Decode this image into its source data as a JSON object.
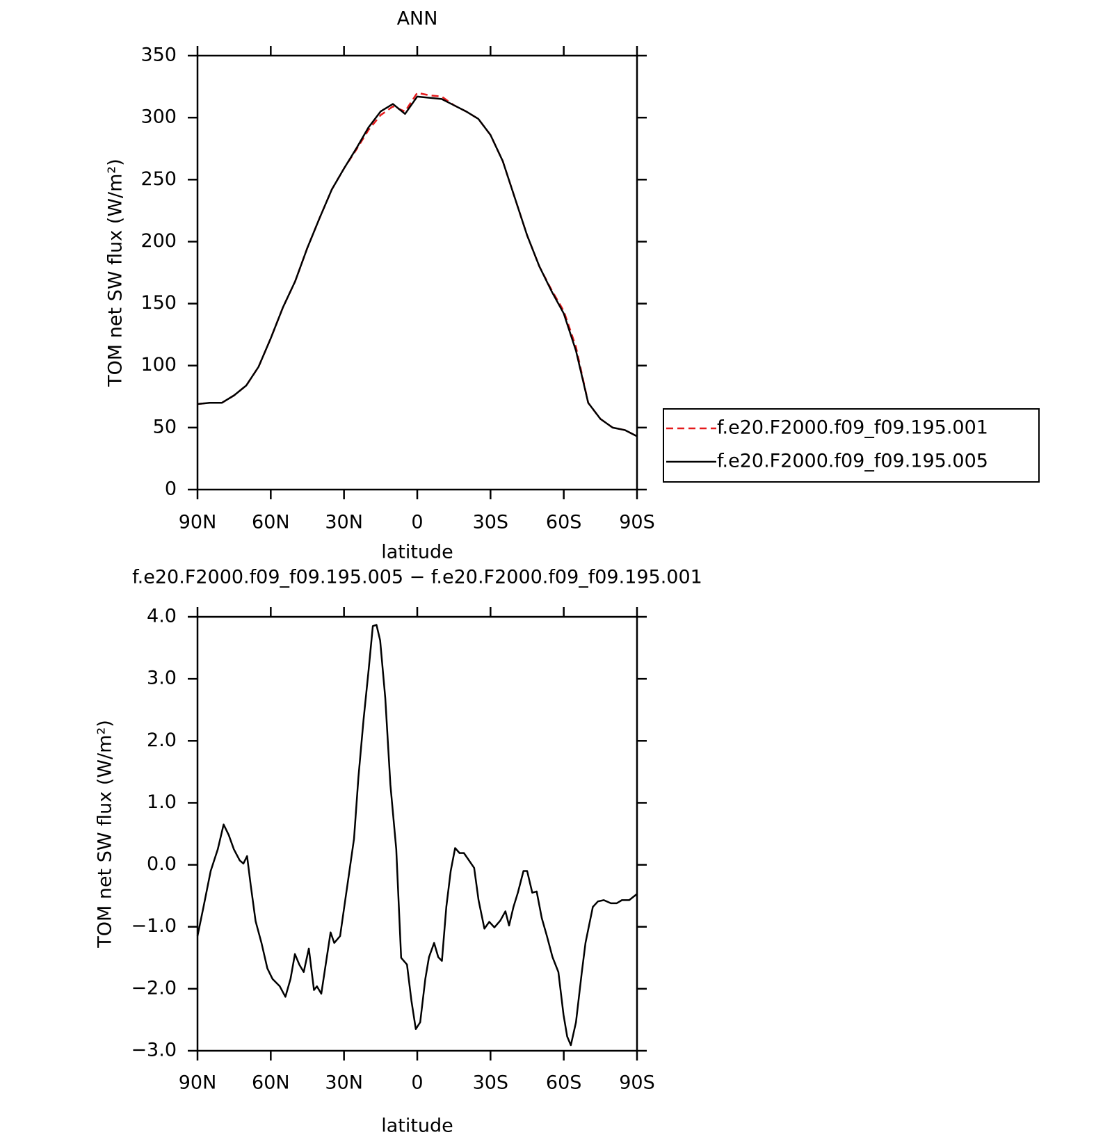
{
  "chart_data": [
    {
      "type": "line",
      "title": "ANN",
      "xlabel": "latitude",
      "ylabel": "TOM net SW flux (W/m²)",
      "x": [
        90,
        85,
        80,
        75,
        70,
        65,
        60,
        55,
        50,
        45,
        40,
        35,
        30,
        25,
        20,
        15,
        10,
        5,
        0,
        -5,
        -10,
        -15,
        -20,
        -25,
        -30,
        -35,
        -40,
        -45,
        -50,
        -55,
        -60,
        -65,
        -70,
        -75,
        -80,
        -85,
        -90
      ],
      "series": [
        {
          "name": "f.e20.F2000.f09_f09.195.001",
          "color": "#e41a1c",
          "linestyle": "dashed",
          "values": [
            69,
            70,
            70,
            76,
            84,
            99,
            122,
            147,
            168,
            195,
            219,
            242,
            259,
            274,
            290,
            302,
            309,
            305,
            320,
            318,
            317,
            310,
            305,
            299,
            286,
            265,
            235,
            205,
            180,
            161,
            144,
            115,
            70,
            57,
            50,
            48,
            43
          ]
        },
        {
          "name": "f.e20.F2000.f09_f09.195.005",
          "color": "#000000",
          "linestyle": "solid",
          "values": [
            69,
            70,
            70,
            76,
            84,
            99,
            122,
            147,
            168,
            195,
            219,
            242,
            259,
            275,
            292,
            305,
            311,
            303,
            317,
            316,
            315,
            310,
            305,
            299,
            286,
            265,
            235,
            205,
            180,
            160,
            142,
            112,
            70,
            57,
            50,
            48,
            43
          ]
        }
      ],
      "xlim": [
        90,
        -90
      ],
      "xticks": [
        {
          "value": 90,
          "label": "90N"
        },
        {
          "value": 60,
          "label": "60N"
        },
        {
          "value": 30,
          "label": "30N"
        },
        0,
        {
          "value": -30,
          "label": "30S"
        },
        {
          "value": -60,
          "label": "60S"
        },
        {
          "value": -90,
          "label": "90S"
        }
      ],
      "ylim": [
        0,
        350
      ],
      "yticks": [
        0,
        50,
        100,
        150,
        200,
        250,
        300,
        350
      ],
      "legend": "right"
    },
    {
      "type": "line",
      "title": "f.e20.F2000.f09_f09.195.005 − f.e20.F2000.f09_f09.195.001",
      "xlabel": "latitude",
      "ylabel": "TOM net SW flux (W/m²)",
      "x": [
        90,
        87.6,
        84.6,
        81.7,
        79.3,
        77.2,
        75.1,
        72.7,
        71.2,
        69.7,
        68.2,
        66.2,
        63.8,
        61.4,
        59.3,
        56.3,
        54,
        51.9,
        50.1,
        48.3,
        46.5,
        44.4,
        42.3,
        41.1,
        39.3,
        37.5,
        35.5,
        34,
        31.6,
        29.5,
        28,
        25.9,
        24.1,
        22,
        19.9,
        18.2,
        16.7,
        15.2,
        13.1,
        11,
        8.6,
        6.6,
        4.2,
        2.4,
        0.6,
        -1.2,
        -3.3,
        -4.8,
        -6.9,
        -8.6,
        -10.1,
        -11.9,
        -13.7,
        -15.5,
        -17.3,
        -19.1,
        -21.2,
        -23.3,
        -25.1,
        -27.5,
        -29.5,
        -31.6,
        -34,
        -36.1,
        -37.6,
        -39.4,
        -41.2,
        -43.5,
        -45,
        -47.1,
        -48.9,
        -51,
        -53.1,
        -55.4,
        -57.8,
        -59.9,
        -61.4,
        -62.9,
        -65,
        -67.4,
        -68.9,
        -70.4,
        -71.9,
        -74,
        -76.4,
        -79.3,
        -81.7,
        -83.8,
        -86.8,
        -90
      ],
      "series": [
        {
          "color": "#000000",
          "linestyle": "solid",
          "values": [
            -1.15,
            -0.69,
            -0.1,
            0.25,
            0.65,
            0.48,
            0.25,
            0.07,
            0.02,
            0.14,
            -0.33,
            -0.91,
            -1.26,
            -1.67,
            -1.84,
            -1.96,
            -2.13,
            -1.84,
            -1.44,
            -1.61,
            -1.73,
            -1.35,
            -2.02,
            -1.96,
            -2.08,
            -1.61,
            -1.09,
            -1.26,
            -1.15,
            -0.57,
            -0.16,
            0.42,
            1.41,
            2.34,
            3.15,
            3.85,
            3.87,
            3.62,
            2.69,
            1.29,
            0.25,
            -1.5,
            -1.61,
            -2.19,
            -2.65,
            -2.54,
            -1.84,
            -1.49,
            -1.26,
            -1.49,
            -1.55,
            -0.68,
            -0.1,
            0.27,
            0.19,
            0.19,
            0.07,
            -0.05,
            -0.57,
            -1.03,
            -0.92,
            -1.01,
            -0.9,
            -0.75,
            -0.98,
            -0.68,
            -0.45,
            -0.1,
            -0.1,
            -0.45,
            -0.43,
            -0.86,
            -1.15,
            -1.49,
            -1.73,
            -2.42,
            -2.77,
            -2.91,
            -2.54,
            -1.73,
            -1.26,
            -0.97,
            -0.68,
            -0.59,
            -0.57,
            -0.62,
            -0.62,
            -0.57,
            -0.57,
            -0.47
          ]
        }
      ],
      "xlim": [
        90,
        -90
      ],
      "xticks": [
        {
          "value": 90,
          "label": "90N"
        },
        {
          "value": 60,
          "label": "60N"
        },
        {
          "value": 30,
          "label": "30N"
        },
        0,
        {
          "value": -30,
          "label": "30S"
        },
        {
          "value": -60,
          "label": "60S"
        },
        {
          "value": -90,
          "label": "90S"
        }
      ],
      "ylim": [
        -3,
        4
      ],
      "yticks": [
        {
          "value": -3,
          "label": "−3.0"
        },
        {
          "value": -2,
          "label": "−2.0"
        },
        {
          "value": -1,
          "label": "−1.0"
        },
        {
          "value": 0,
          "label": "0.0"
        },
        {
          "value": 1,
          "label": "1.0"
        },
        {
          "value": 2,
          "label": "2.0"
        },
        {
          "value": 3,
          "label": "3.0"
        },
        {
          "value": 4,
          "label": "4.0"
        }
      ]
    }
  ]
}
